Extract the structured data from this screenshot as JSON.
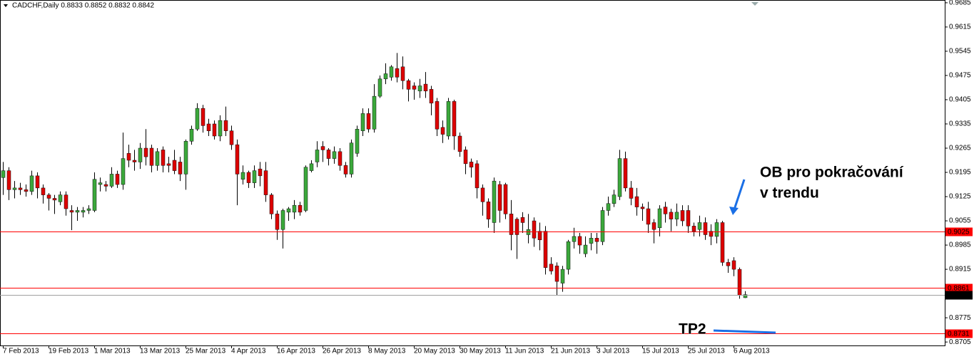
{
  "chart_data": {
    "type": "candlestick",
    "title": "CADCHF,Daily 0.8833 0.8852 0.8832 0.8842",
    "up_color": "#3ba83b",
    "down_color": "#dd0000",
    "categories": [
      "7 Feb 2013",
      null,
      null,
      null,
      null,
      null,
      null,
      null,
      "19 Feb 2013",
      null,
      null,
      null,
      null,
      null,
      null,
      null,
      "1 Mar 2013",
      null,
      null,
      null,
      null,
      null,
      null,
      null,
      "13 Mar 2013",
      null,
      null,
      null,
      null,
      null,
      null,
      null,
      "25 Mar 2013",
      null,
      null,
      null,
      null,
      null,
      null,
      null,
      "4 Apr 2013",
      null,
      null,
      null,
      null,
      null,
      null,
      null,
      "16 Apr 2013",
      null,
      null,
      null,
      null,
      null,
      null,
      null,
      "26 Apr 2013",
      null,
      null,
      null,
      null,
      null,
      null,
      null,
      "8 May 2013",
      null,
      null,
      null,
      null,
      null,
      null,
      null,
      "20 May 2013",
      null,
      null,
      null,
      null,
      null,
      null,
      null,
      "30 May 2013",
      null,
      null,
      null,
      null,
      null,
      null,
      null,
      "11 Jun 2013",
      null,
      null,
      null,
      null,
      null,
      null,
      null,
      "21 Jun 2013",
      null,
      null,
      null,
      null,
      null,
      null,
      null,
      "3 Jul 2013",
      null,
      null,
      null,
      null,
      null,
      null,
      null,
      "15 Jul 2013",
      null,
      null,
      null,
      null,
      null,
      null,
      null,
      "25 Jul 2013",
      null,
      null,
      null,
      null,
      null,
      null,
      null,
      "6 Aug 2013",
      null,
      null
    ],
    "open": [
      0.918,
      0.92,
      0.9145,
      0.915,
      0.9145,
      0.914,
      0.9185,
      0.915,
      0.913,
      0.912,
      0.911,
      0.913,
      0.9085,
      0.908,
      0.908,
      0.9085,
      0.9085,
      0.916,
      0.916,
      0.9155,
      0.919,
      0.916,
      0.925,
      0.923,
      0.9225,
      0.9265,
      0.9265,
      0.9215,
      0.926,
      0.922,
      0.923,
      0.9225,
      0.919,
      0.9285,
      0.932,
      0.938,
      0.9335,
      0.9335,
      0.93,
      0.9345,
      0.9315,
      0.9275,
      0.9175,
      0.9195,
      0.9165,
      0.9205,
      0.92,
      0.913,
      0.9075,
      0.903,
      0.908,
      0.908,
      0.91,
      0.9085,
      0.92,
      0.9225,
      0.927,
      0.926,
      0.9235,
      0.9255,
      0.9215,
      0.919,
      0.925,
      0.9315,
      0.9365,
      0.932,
      0.9415,
      0.9465,
      0.947,
      0.9495,
      0.95,
      0.946,
      0.9445,
      0.943,
      0.945,
      0.9435,
      0.94,
      0.9325,
      0.93,
      0.94,
      0.93,
      0.926,
      0.9225,
      0.922,
      0.915,
      0.911,
      0.905,
      0.916,
      0.916,
      0.9075,
      0.906,
      0.9065,
      0.9015,
      0.9055,
      0.9025,
      0.9025,
      0.893,
      0.8925,
      0.8875,
      0.8915,
      0.8995,
      0.901,
      0.896,
      0.899,
      0.9005,
      0.8995,
      0.9085,
      0.9105,
      0.9125,
      0.9235,
      0.915,
      0.9125,
      0.9095,
      0.909,
      0.905,
      0.9035,
      0.9095,
      0.908,
      0.906,
      0.9085,
      0.9085,
      0.904,
      0.903,
      0.905,
      0.9025,
      0.901,
      0.905,
      0.8935,
      0.894,
      0.8915,
      0.8833
    ],
    "high": [
      0.9225,
      0.921,
      0.917,
      0.9165,
      0.916,
      0.92,
      0.9195,
      0.916,
      0.9135,
      0.913,
      0.914,
      0.914,
      0.91,
      0.9095,
      0.9095,
      0.91,
      0.9195,
      0.918,
      0.917,
      0.921,
      0.92,
      0.931,
      0.9275,
      0.926,
      0.928,
      0.932,
      0.9275,
      0.9265,
      0.927,
      0.924,
      0.926,
      0.924,
      0.929,
      0.933,
      0.9395,
      0.939,
      0.935,
      0.9345,
      0.936,
      0.9385,
      0.933,
      0.929,
      0.9215,
      0.92,
      0.9215,
      0.9225,
      0.9225,
      0.9135,
      0.9085,
      0.909,
      0.9095,
      0.9115,
      0.911,
      0.9215,
      0.923,
      0.9285,
      0.9285,
      0.9265,
      0.927,
      0.9265,
      0.9225,
      0.929,
      0.933,
      0.938,
      0.938,
      0.945,
      0.9475,
      0.951,
      0.9505,
      0.954,
      0.953,
      0.9465,
      0.9455,
      0.9465,
      0.9485,
      0.9445,
      0.941,
      0.9345,
      0.941,
      0.9405,
      0.931,
      0.927,
      0.9235,
      0.923,
      0.916,
      0.912,
      0.918,
      0.917,
      0.9165,
      0.9115,
      0.9065,
      0.908,
      0.9075,
      0.9065,
      0.905,
      0.904,
      0.895,
      0.8935,
      0.8925,
      0.9,
      0.9035,
      0.902,
      0.901,
      0.902,
      0.902,
      0.9095,
      0.9125,
      0.9145,
      0.926,
      0.9255,
      0.917,
      0.915,
      0.9105,
      0.911,
      0.906,
      0.91,
      0.911,
      0.909,
      0.9105,
      0.91,
      0.91,
      0.905,
      0.907,
      0.9065,
      0.9045,
      0.906,
      0.9055,
      0.8945,
      0.895,
      0.892,
      0.8852
    ],
    "low": [
      0.913,
      0.9115,
      0.912,
      0.913,
      0.9125,
      0.913,
      0.912,
      0.9105,
      0.9085,
      0.9075,
      0.91,
      0.907,
      0.9028,
      0.9055,
      0.9065,
      0.9075,
      0.908,
      0.914,
      0.914,
      0.915,
      0.915,
      0.9145,
      0.921,
      0.92,
      0.9205,
      0.9215,
      0.9195,
      0.92,
      0.9195,
      0.9195,
      0.919,
      0.917,
      0.9145,
      0.9275,
      0.9315,
      0.931,
      0.93,
      0.929,
      0.9285,
      0.93,
      0.926,
      0.91,
      0.916,
      0.915,
      0.915,
      0.9155,
      0.911,
      0.906,
      0.9,
      0.8975,
      0.9055,
      0.906,
      0.907,
      0.908,
      0.9195,
      0.921,
      0.9225,
      0.9215,
      0.922,
      0.92,
      0.918,
      0.918,
      0.924,
      0.93,
      0.931,
      0.931,
      0.941,
      0.945,
      0.946,
      0.9455,
      0.9435,
      0.94,
      0.9405,
      0.941,
      0.941,
      0.936,
      0.93,
      0.928,
      0.929,
      0.926,
      0.924,
      0.919,
      0.918,
      0.912,
      0.907,
      0.9035,
      0.902,
      0.905,
      0.906,
      0.897,
      0.8945,
      0.902,
      0.899,
      0.898,
      0.897,
      0.89,
      0.89,
      0.884,
      0.885,
      0.89,
      0.8975,
      0.896,
      0.895,
      0.897,
      0.896,
      0.8985,
      0.907,
      0.9095,
      0.9115,
      0.914,
      0.91,
      0.907,
      0.9055,
      0.902,
      0.899,
      0.901,
      0.905,
      0.9025,
      0.904,
      0.904,
      0.902,
      0.901,
      0.901,
      0.9,
      0.8985,
      0.899,
      0.8925,
      0.8905,
      0.8895,
      0.883,
      0.8832
    ],
    "close": [
      0.92,
      0.9145,
      0.915,
      0.9145,
      0.914,
      0.9185,
      0.915,
      0.913,
      0.912,
      0.9115,
      0.913,
      0.909,
      0.908,
      0.9085,
      0.9085,
      0.909,
      0.9175,
      0.9165,
      0.9155,
      0.919,
      0.916,
      0.9235,
      0.923,
      0.9225,
      0.9265,
      0.924,
      0.9215,
      0.9255,
      0.9215,
      0.9215,
      0.92,
      0.919,
      0.9285,
      0.932,
      0.938,
      0.933,
      0.9315,
      0.93,
      0.9345,
      0.9315,
      0.9275,
      0.919,
      0.9195,
      0.9165,
      0.92,
      0.9185,
      0.913,
      0.9075,
      0.903,
      0.9085,
      0.909,
      0.91,
      0.908,
      0.921,
      0.922,
      0.926,
      0.926,
      0.9235,
      0.9255,
      0.9215,
      0.919,
      0.928,
      0.932,
      0.9365,
      0.932,
      0.9415,
      0.9465,
      0.948,
      0.95,
      0.947,
      0.946,
      0.9435,
      0.9435,
      0.9445,
      0.943,
      0.9395,
      0.932,
      0.9305,
      0.94,
      0.93,
      0.9255,
      0.922,
      0.921,
      0.915,
      0.911,
      0.906,
      0.917,
      0.9085,
      0.9075,
      0.9015,
      0.9015,
      0.905,
      0.903,
      0.9005,
      0.9,
      0.892,
      0.891,
      0.888,
      0.8915,
      0.8995,
      0.901,
      0.8985,
      0.8985,
      0.9005,
      0.8995,
      0.9085,
      0.9105,
      0.913,
      0.9235,
      0.915,
      0.912,
      0.9095,
      0.909,
      0.9045,
      0.903,
      0.909,
      0.9075,
      0.906,
      0.908,
      0.9055,
      0.904,
      0.9025,
      0.905,
      0.9015,
      0.901,
      0.905,
      0.8935,
      0.8925,
      0.8915,
      0.884,
      0.8842
    ],
    "ylim": [
      0.8695,
      0.9693
    ],
    "yticks": [
      0.9685,
      0.9615,
      0.9545,
      0.9475,
      0.9405,
      0.9335,
      0.9265,
      0.9195,
      0.9125,
      0.9055,
      0.8985,
      0.8915,
      0.8775,
      0.8705
    ],
    "hlines": [
      {
        "value": 0.9025,
        "color": "#ff0000",
        "label_color": "#ff0000"
      },
      {
        "value": 0.8861,
        "color": "#ff0000",
        "label_color": "#ff0000"
      },
      {
        "value": 0.8842,
        "color": "#a0a0a0",
        "label_color": "#000000"
      },
      {
        "value": 0.8731,
        "color": "#ff0000",
        "label_color": "#ff0000"
      }
    ],
    "annotation_color": "#1a6fe6",
    "annotations": [
      "OB pro pokračování",
      "v trendu",
      "TP2"
    ]
  }
}
